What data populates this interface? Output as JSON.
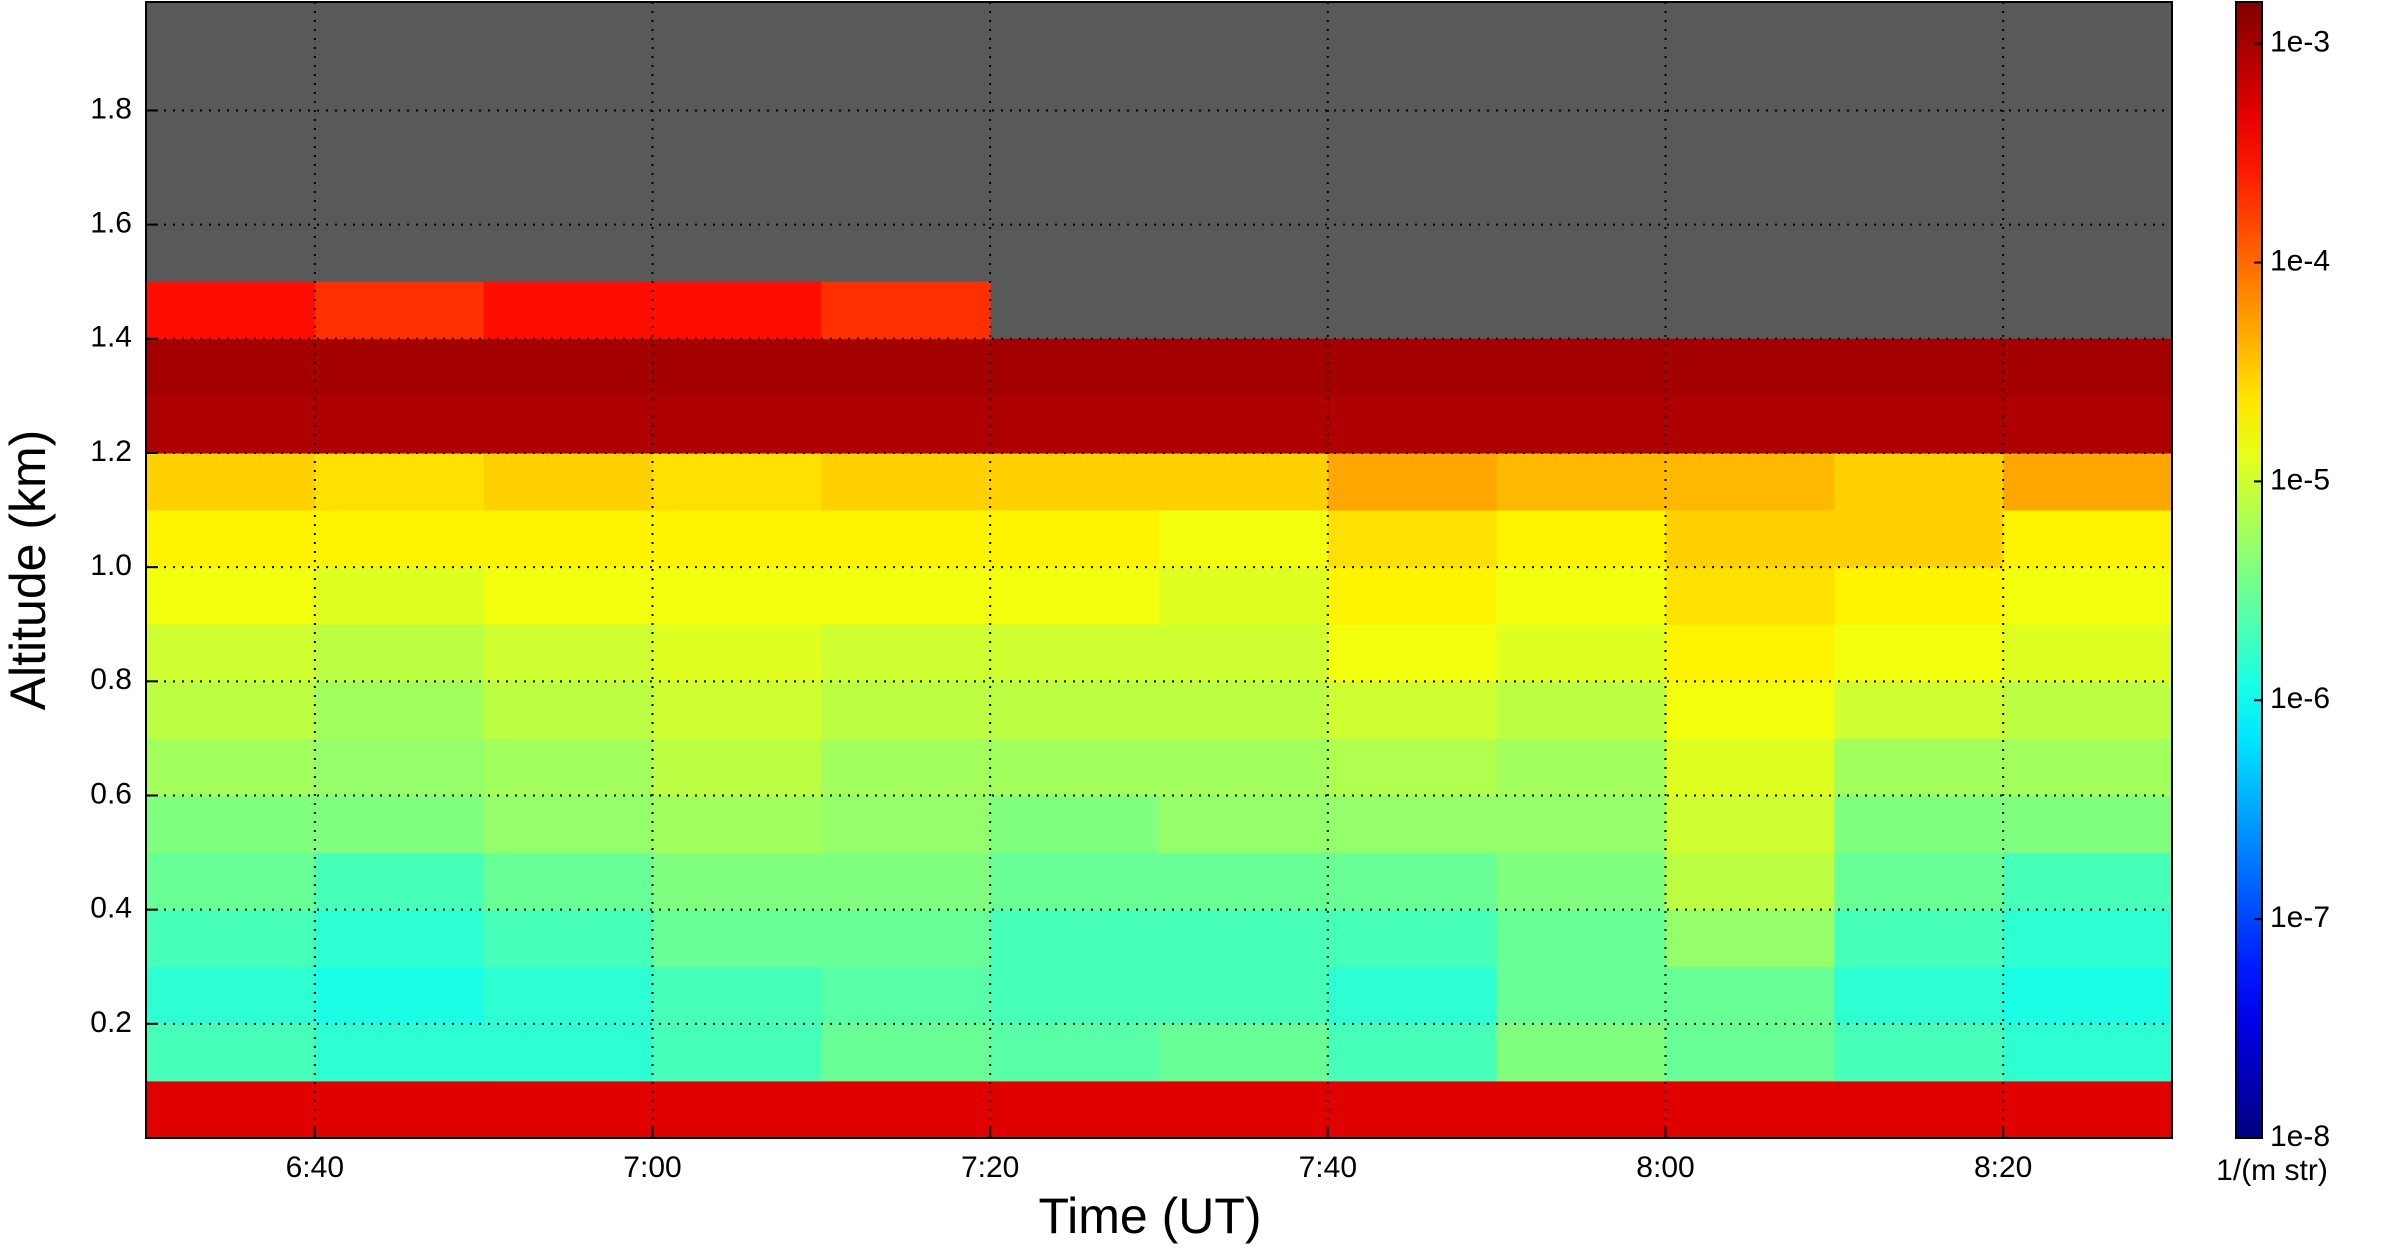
{
  "chart_data": {
    "type": "heatmap",
    "xlabel": "Time (UT)",
    "ylabel": "Altitude (km)",
    "colorbar_label": "1/(m str)",
    "colormap": "jet",
    "color_scale": "log",
    "missing_color": "#595959",
    "grid": true,
    "xlim": [
      390,
      510
    ],
    "xticks": [
      {
        "value": 400,
        "label": "6:40"
      },
      {
        "value": 420,
        "label": "7:00"
      },
      {
        "value": 440,
        "label": "7:20"
      },
      {
        "value": 460,
        "label": "7:40"
      },
      {
        "value": 480,
        "label": "8:00"
      },
      {
        "value": 500,
        "label": "8:20"
      }
    ],
    "ylim": [
      0,
      1.99
    ],
    "yticks": [
      0.2,
      0.4,
      0.6,
      0.8,
      {
        "value": 1,
        "label": "1.0"
      },
      1.2,
      1.4,
      1.6,
      1.8
    ],
    "clim": [
      1e-08,
      0.00155
    ],
    "cticks": [
      {
        "value": 1e-08,
        "label": "1e-8"
      },
      {
        "value": 1e-07,
        "label": "1e-7"
      },
      {
        "value": 1e-06,
        "label": "1e-6"
      },
      {
        "value": 1e-05,
        "label": "1e-5"
      },
      {
        "value": 0.0001,
        "label": "1e-4"
      },
      {
        "value": 0.001,
        "label": "1e-3"
      }
    ],
    "x": [
      395,
      405,
      415,
      425,
      435,
      445,
      455,
      465,
      475,
      485,
      495,
      505
    ],
    "y": [
      0.05,
      0.15,
      0.25,
      0.35,
      0.45,
      0.55,
      0.65,
      0.75,
      0.85,
      0.95,
      1.05,
      1.15,
      1.25,
      1.35,
      1.45,
      1.55,
      1.65,
      1.75,
      1.85,
      1.95
    ],
    "values": [
      [
        0.0005,
        0.0005,
        0.0005,
        0.0005,
        0.0005,
        0.0005,
        0.0005,
        0.0005,
        0.0005,
        0.0005,
        0.0005,
        0.0005
      ],
      [
        2e-06,
        1.5e-06,
        1.5e-06,
        2e-06,
        3e-06,
        2.5e-06,
        3e-06,
        2e-06,
        4e-06,
        3e-06,
        2e-06,
        1.5e-06
      ],
      [
        1.5e-06,
        1.2e-06,
        1.5e-06,
        2e-06,
        2.5e-06,
        2e-06,
        2e-06,
        1.5e-06,
        3e-06,
        3e-06,
        1.5e-06,
        1.2e-06
      ],
      [
        2e-06,
        1.5e-06,
        2e-06,
        3e-06,
        3e-06,
        2e-06,
        2e-06,
        2e-06,
        3e-06,
        5e-06,
        2e-06,
        1.5e-06
      ],
      [
        3e-06,
        2e-06,
        3e-06,
        4e-06,
        4e-06,
        3e-06,
        3e-06,
        3e-06,
        4e-06,
        8e-06,
        3e-06,
        2e-06
      ],
      [
        4e-06,
        4e-06,
        5e-06,
        6e-06,
        5e-06,
        4e-06,
        5e-06,
        5e-06,
        5e-06,
        1e-05,
        4e-06,
        4e-06
      ],
      [
        6e-06,
        5e-06,
        6e-06,
        8e-06,
        6e-06,
        6e-06,
        6e-06,
        7e-06,
        6e-06,
        1.2e-05,
        6e-06,
        6e-06
      ],
      [
        8e-06,
        6e-06,
        8e-06,
        1e-05,
        8e-06,
        8e-06,
        8e-06,
        1e-05,
        8e-06,
        1.5e-05,
        1e-05,
        8e-06
      ],
      [
        1e-05,
        8e-06,
        1e-05,
        1.2e-05,
        1e-05,
        1e-05,
        1e-05,
        1.5e-05,
        1.2e-05,
        2e-05,
        1.5e-05,
        1.2e-05
      ],
      [
        1.5e-05,
        1.2e-05,
        1.5e-05,
        1.5e-05,
        1.5e-05,
        1.5e-05,
        1.2e-05,
        2e-05,
        1.5e-05,
        2.5e-05,
        2e-05,
        1.5e-05
      ],
      [
        2e-05,
        2e-05,
        2e-05,
        2e-05,
        2e-05,
        2e-05,
        1.5e-05,
        2.5e-05,
        2e-05,
        3e-05,
        3e-05,
        2e-05
      ],
      [
        3e-05,
        2.5e-05,
        3e-05,
        2.5e-05,
        3e-05,
        3e-05,
        3e-05,
        5e-05,
        4e-05,
        4e-05,
        3e-05,
        5e-05
      ],
      [
        0.0009,
        0.0009,
        0.0009,
        0.0009,
        0.0009,
        0.0009,
        0.0009,
        0.0009,
        0.0009,
        0.0009,
        0.0009,
        0.0009
      ],
      [
        0.001,
        0.001,
        0.001,
        0.001,
        0.001,
        0.001,
        0.001,
        0.001,
        0.001,
        0.001,
        0.001,
        0.001
      ],
      [
        0.0003,
        0.0002,
        0.0003,
        0.0003,
        0.0002,
        null,
        null,
        null,
        null,
        null,
        null,
        null
      ],
      [
        null,
        null,
        null,
        null,
        null,
        null,
        null,
        null,
        null,
        null,
        null,
        null
      ],
      [
        null,
        null,
        null,
        null,
        null,
        null,
        null,
        null,
        null,
        null,
        null,
        null
      ],
      [
        null,
        null,
        null,
        null,
        null,
        null,
        null,
        null,
        null,
        null,
        null,
        null
      ],
      [
        null,
        null,
        null,
        null,
        null,
        null,
        null,
        null,
        null,
        null,
        null,
        null
      ],
      [
        null,
        null,
        null,
        null,
        null,
        null,
        null,
        null,
        null,
        null,
        null,
        null
      ]
    ]
  }
}
